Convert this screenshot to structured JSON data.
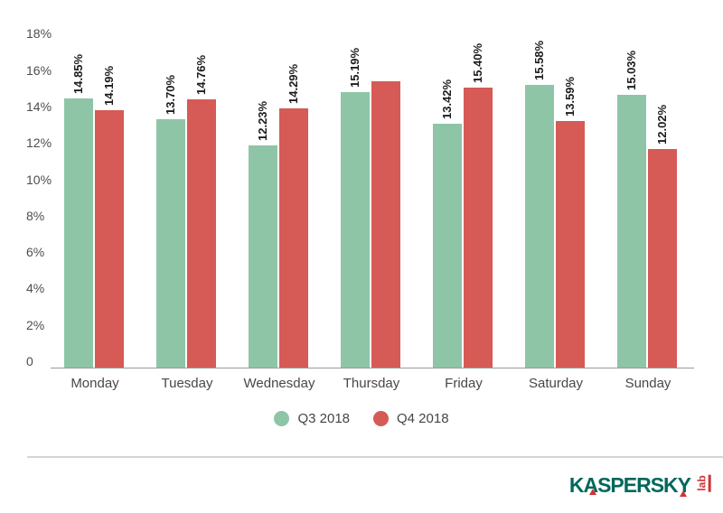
{
  "chart_data": {
    "type": "bar",
    "title": "",
    "xlabel": "",
    "ylabel": "",
    "grid": false,
    "legend_position": "bottom",
    "ylim": [
      0,
      18
    ],
    "categories": [
      "Monday",
      "Tuesday",
      "Wednesday",
      "Thursday",
      "Friday",
      "Saturday",
      "Sunday"
    ],
    "series": [
      {
        "name": "Q3 2018",
        "color": "#8ec5a6",
        "values": [
          14.85,
          13.7,
          12.23,
          15.19,
          13.42,
          15.58,
          15.03
        ],
        "labels": [
          "14.85%",
          "13.70%",
          "12.23%",
          "15.19%",
          "13.42%",
          "15.58%",
          "15.03%"
        ]
      },
      {
        "name": "Q4 2018",
        "color": "#d65a55",
        "values": [
          14.19,
          14.76,
          14.29,
          15.77,
          15.4,
          13.59,
          12.02
        ],
        "labels": [
          "14.19%",
          "14.76%",
          "14.29%",
          "",
          "15.40%",
          "13.59%",
          "12.02%"
        ]
      }
    ],
    "yticks": [
      {
        "v": 18,
        "label": "18%"
      },
      {
        "v": 16,
        "label": "16%"
      },
      {
        "v": 14,
        "label": "14%"
      },
      {
        "v": 12,
        "label": "12%"
      },
      {
        "v": 10,
        "label": "10%"
      },
      {
        "v": 8,
        "label": "8%"
      },
      {
        "v": 6,
        "label": "6%"
      },
      {
        "v": 4,
        "label": "4%"
      },
      {
        "v": 2,
        "label": "2%"
      },
      {
        "v": 0,
        "label": "0"
      }
    ]
  },
  "branding": {
    "wordmark": "KASPERSKY",
    "sub": "lab",
    "wordmark_color": "#00685a",
    "accent_color": "#cf3339"
  }
}
